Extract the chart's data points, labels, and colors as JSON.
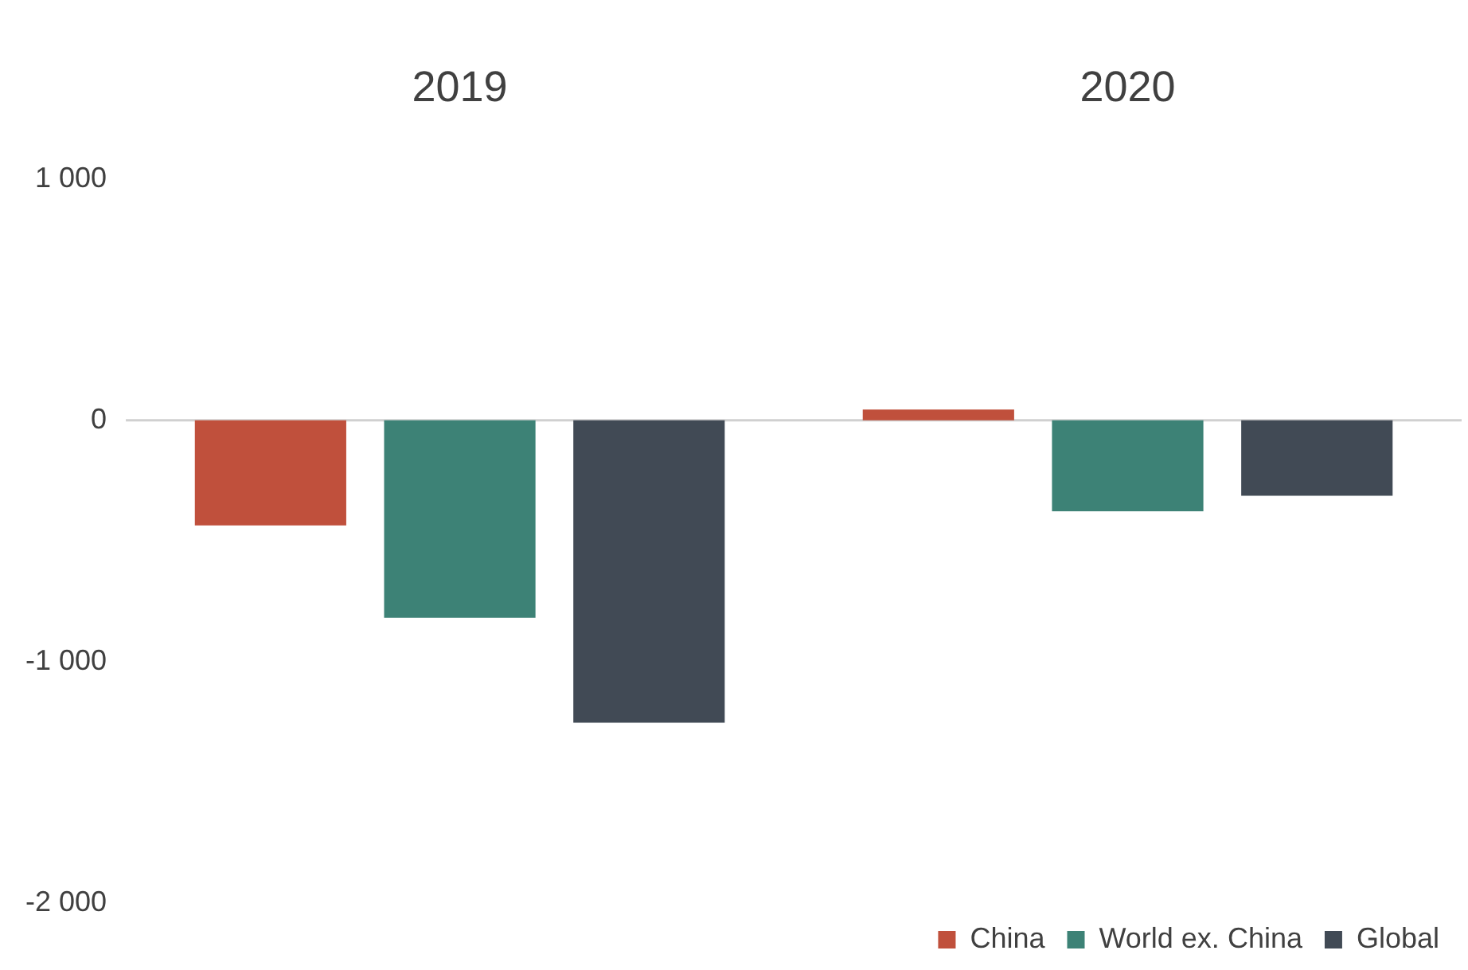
{
  "chart_data": {
    "type": "bar",
    "categories": [
      "2019",
      "2020"
    ],
    "series": [
      {
        "name": "China",
        "color": "#c0503c",
        "values": [
          -435,
          45
        ]
      },
      {
        "name": "World ex. China",
        "color": "#3d8276",
        "values": [
          -818,
          -377
        ]
      },
      {
        "name": "Global",
        "color": "#414a55",
        "values": [
          -1253,
          -312
        ]
      }
    ],
    "ylim": [
      -2000,
      1000
    ],
    "yticks": [
      {
        "value": 1000,
        "label": "1 000"
      },
      0,
      {
        "value": -1000,
        "label": "-1 000"
      },
      {
        "value": -2000,
        "label": "-2 000"
      }
    ],
    "ref_lines": [
      {
        "axis": "y",
        "value": 0,
        "color": "#d0d0d0"
      }
    ],
    "grid": false,
    "legend": "bottom right"
  }
}
